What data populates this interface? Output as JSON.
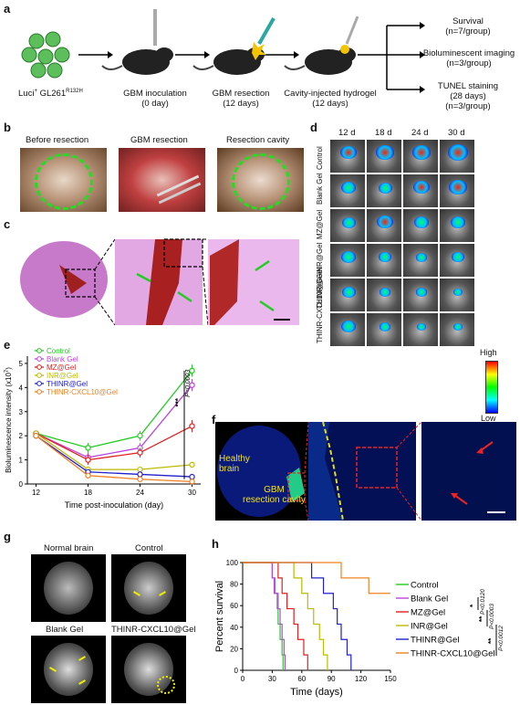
{
  "panel_a": {
    "label": "a",
    "cell_line_pre": "Luci",
    "cell_line_sup": "+",
    "cell_line_name": " GL261",
    "cell_line_mut": "R132H",
    "steps": [
      {
        "title": "GBM inoculation",
        "sub": "(0 day)"
      },
      {
        "title": "GBM resection",
        "sub": "(12 days)"
      },
      {
        "title": "Cavity-injected hydrogel",
        "sub": "(12 days)"
      }
    ],
    "outcomes": [
      {
        "title": "Survival",
        "sub": "(n=7/group)"
      },
      {
        "title": "Bioluminescent imaging",
        "sub": "(n=3/group)"
      },
      {
        "title": "TUNEL staining",
        "sub": "(28 days)",
        "sub2": "(n=3/group)"
      }
    ]
  },
  "panel_b": {
    "label": "b",
    "titles": [
      "Before resection",
      "GBM resection",
      "Resection cavity"
    ]
  },
  "panel_c": {
    "label": "c"
  },
  "panel_d": {
    "label": "d",
    "days": [
      "12 d",
      "18 d",
      "24 d",
      "30 d"
    ],
    "groups": [
      "Control",
      "Blank Gel",
      "MZ@Gel",
      "INR@Gel",
      "THINR@Gel",
      "THINR-CXCL10@Gel"
    ],
    "scale_high": "High",
    "scale_low": "Low"
  },
  "panel_e": {
    "label": "e"
  },
  "panel_f": {
    "label": "f",
    "healthy_1": "Healthy",
    "healthy_2": "brain",
    "cavity_1": "GBM",
    "cavity_2": "resection cavity"
  },
  "panel_g": {
    "label": "g",
    "titles": [
      "Normal brain",
      "Control",
      "Blank Gel",
      "THINR-CXCL10@Gel"
    ]
  },
  "panel_h": {
    "label": "h"
  },
  "chart_data": [
    {
      "type": "line",
      "panel": "e",
      "xlabel": "Time post-inoculation (day)",
      "ylabel": "Bioluminescence intensity (x10⁷)",
      "ylabel_main": "Bioluminescence intensity (x10",
      "ylabel_exp": "7",
      "ylabel_close": ")",
      "x": [
        12,
        18,
        24,
        30
      ],
      "xticks": [
        "12",
        "18",
        "24",
        "30"
      ],
      "yticks": [
        "0",
        "1",
        "2",
        "3",
        "4",
        "5"
      ],
      "xlim": [
        11,
        31
      ],
      "ylim": [
        0,
        5.3
      ],
      "annotation_stars": "***",
      "annotation_p": "P<0.0003",
      "legend_position": "top-left",
      "series": [
        {
          "name": "Control",
          "color": "#22cc22",
          "values": [
            2.1,
            1.5,
            2.0,
            4.7
          ],
          "err": [
            0.1,
            0.2,
            0.2,
            0.25
          ]
        },
        {
          "name": "Blank Gel",
          "color": "#bb44dd",
          "values": [
            2.1,
            1.1,
            1.5,
            4.1
          ],
          "err": [
            0.1,
            0.2,
            0.2,
            0.25
          ]
        },
        {
          "name": "MZ@Gel",
          "color": "#e02020",
          "values": [
            2.1,
            1.0,
            1.3,
            2.4
          ],
          "err": [
            0.1,
            0.2,
            0.2,
            0.25
          ]
        },
        {
          "name": "INR@Gel",
          "color": "#bbbb00",
          "values": [
            2.1,
            0.6,
            0.6,
            0.8
          ],
          "err": [
            0.1,
            0.1,
            0.1,
            0.1
          ]
        },
        {
          "name": "THINR@Gel",
          "color": "#2020cc",
          "values": [
            2.0,
            0.5,
            0.4,
            0.3
          ],
          "err": [
            0.1,
            0.1,
            0.1,
            0.1
          ]
        },
        {
          "name": "THINR-CXCL10@Gel",
          "color": "#f08020",
          "values": [
            2.0,
            0.35,
            0.2,
            0.1
          ],
          "err": [
            0.1,
            0.05,
            0.05,
            0.05
          ]
        }
      ]
    },
    {
      "type": "line",
      "panel": "h",
      "subtype": "kaplan-meier",
      "xlabel": "Time (days)",
      "ylabel": "Percent survival",
      "xticks": [
        "0",
        "30",
        "60",
        "90",
        "120",
        "150"
      ],
      "yticks": [
        "0",
        "20",
        "40",
        "60",
        "80",
        "100"
      ],
      "xlim": [
        0,
        150
      ],
      "ylim": [
        0,
        100
      ],
      "annotations": [
        {
          "stars": "*",
          "p": "P<0.0120"
        },
        {
          "stars": "**",
          "p": "P<0.0003"
        },
        {
          "stars": "**",
          "p": "P<0.0012"
        }
      ],
      "series": [
        {
          "name": "Control",
          "color": "#22cc22",
          "deaths": [
            30,
            33,
            35,
            36,
            38,
            40,
            41
          ]
        },
        {
          "name": "Blank Gel",
          "color": "#bb44dd",
          "deaths": [
            30,
            32,
            36,
            38,
            40,
            42,
            43
          ]
        },
        {
          "name": "MZ@Gel",
          "color": "#e02020",
          "deaths": [
            36,
            40,
            45,
            52,
            56,
            62,
            66
          ]
        },
        {
          "name": "INR@Gel",
          "color": "#bbbb00",
          "deaths": [
            52,
            60,
            66,
            72,
            78,
            82,
            86
          ]
        },
        {
          "name": "THINR@Gel",
          "color": "#2020cc",
          "deaths": [
            70,
            82,
            92,
            96,
            100,
            106,
            110
          ]
        },
        {
          "name": "THINR-CXCL10@Gel",
          "color": "#f08020",
          "deaths": [
            100,
            128
          ],
          "survivors_end": 71.4
        }
      ]
    }
  ]
}
